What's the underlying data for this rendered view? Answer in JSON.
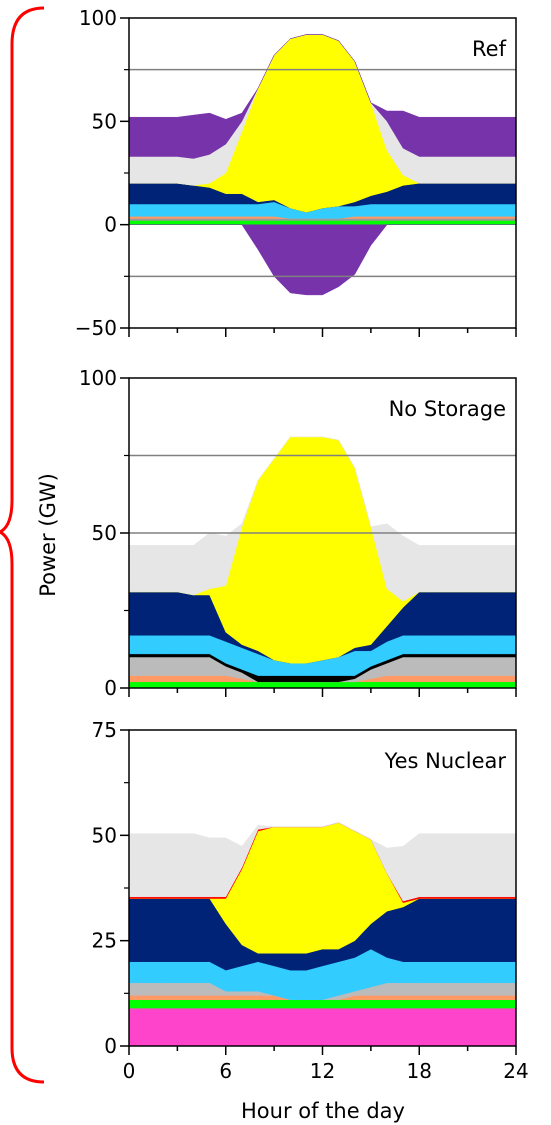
{
  "figure": {
    "ylabel": "Power (GW)",
    "xlabel": "Hour of the day",
    "x_ticks": [
      "0",
      "6",
      "12",
      "18",
      "24"
    ],
    "bracket_color": "#ff0000"
  },
  "chart_data": [
    {
      "type": "area",
      "title": "Ref",
      "xlim": [
        0,
        24
      ],
      "ylim": [
        -50,
        100
      ],
      "y_ticks": [
        -50,
        0,
        50,
        100
      ],
      "y_tick_labels": [
        "−50",
        "0",
        "50",
        "100"
      ],
      "reference_lines": [
        75,
        -25
      ],
      "x": [
        0,
        1,
        2,
        3,
        4,
        5,
        6,
        7,
        8,
        9,
        10,
        11,
        12,
        13,
        14,
        15,
        16,
        17,
        18,
        19,
        20,
        21,
        22,
        23,
        24
      ],
      "series": [
        {
          "color": "#00ff00",
          "values": [
            2,
            2,
            2,
            2,
            2,
            2,
            2,
            2,
            2,
            2,
            2,
            2,
            2,
            2,
            2,
            2,
            2,
            2,
            2,
            2,
            2,
            2,
            2,
            2,
            2
          ]
        },
        {
          "color": "#999999",
          "values": [
            1,
            1,
            1,
            1,
            1,
            1,
            1,
            1,
            1,
            1,
            1,
            1,
            1,
            1,
            1,
            1,
            1,
            1,
            1,
            1,
            1,
            1,
            1,
            1,
            1
          ]
        },
        {
          "color": "#ff9966",
          "values": [
            1,
            1,
            1,
            1,
            1,
            1,
            1,
            1,
            1,
            1,
            0,
            0,
            0,
            0,
            1,
            1,
            1,
            1,
            1,
            1,
            1,
            1,
            1,
            1,
            1
          ]
        },
        {
          "color": "#33ccff",
          "values": [
            6,
            6,
            6,
            6,
            6,
            6,
            6,
            6,
            6,
            7,
            5,
            3,
            5,
            6,
            5,
            6,
            6,
            6,
            6,
            6,
            6,
            6,
            6,
            6,
            6
          ]
        },
        {
          "color": "#002277",
          "values": [
            10,
            10,
            10,
            10,
            9,
            8,
            5,
            5,
            1,
            1,
            0,
            0,
            0,
            0,
            2,
            4,
            6,
            9,
            10,
            10,
            10,
            10,
            10,
            10,
            10
          ]
        },
        {
          "color": "#ffff00",
          "values": [
            0,
            0,
            0,
            0,
            0,
            2,
            10,
            30,
            55,
            70,
            82,
            86,
            84,
            80,
            68,
            45,
            20,
            5,
            0,
            0,
            0,
            0,
            0,
            0,
            0
          ]
        },
        {
          "color": "#e6e6e6",
          "values": [
            13,
            13,
            13,
            13,
            13,
            14,
            14,
            5,
            0,
            0,
            0,
            0,
            0,
            0,
            0,
            0,
            14,
            13,
            13,
            13,
            13,
            13,
            13,
            13,
            13
          ]
        },
        {
          "color": "#7733aa",
          "values": [
            19,
            19,
            19,
            19,
            21,
            20,
            12,
            4,
            0,
            0,
            0,
            0,
            0,
            0,
            0,
            0,
            5,
            18,
            19,
            19,
            19,
            19,
            19,
            19,
            19
          ]
        }
      ],
      "negative_series": [
        {
          "color": "#7733aa",
          "values": [
            0,
            0,
            0,
            0,
            0,
            0,
            0,
            0,
            -12,
            -25,
            -33,
            -34,
            -34,
            -30,
            -24,
            -10,
            0,
            0,
            0,
            0,
            0,
            0,
            0,
            0,
            0
          ]
        }
      ]
    },
    {
      "type": "area",
      "title": "No Storage",
      "xlim": [
        0,
        24
      ],
      "ylim": [
        0,
        100
      ],
      "y_ticks": [
        0,
        50,
        100
      ],
      "y_tick_labels": [
        "0",
        "50",
        "100"
      ],
      "reference_lines": [
        75,
        50
      ],
      "x": [
        0,
        1,
        2,
        3,
        4,
        5,
        6,
        7,
        8,
        9,
        10,
        11,
        12,
        13,
        14,
        15,
        16,
        17,
        18,
        19,
        20,
        21,
        22,
        23,
        24
      ],
      "series": [
        {
          "color": "#00ff00",
          "values": [
            2,
            2,
            2,
            2,
            2,
            2,
            2,
            2,
            2,
            2,
            2,
            2,
            2,
            2,
            2,
            2,
            2,
            2,
            2,
            2,
            2,
            2,
            2,
            2,
            2
          ]
        },
        {
          "color": "#ff9966",
          "values": [
            2,
            2,
            2,
            2,
            2,
            2,
            2,
            1,
            0,
            0,
            0,
            0,
            0,
            0,
            0,
            1,
            2,
            2,
            2,
            2,
            2,
            2,
            2,
            2,
            2
          ]
        },
        {
          "color": "#bbbbbb",
          "values": [
            6,
            6,
            6,
            6,
            6,
            6,
            3,
            2,
            0,
            0,
            0,
            0,
            0,
            0,
            1,
            3,
            4,
            6,
            6,
            6,
            6,
            6,
            6,
            6,
            6
          ]
        },
        {
          "color": "#000000",
          "values": [
            1,
            1,
            1,
            1,
            1,
            1,
            1,
            1,
            2,
            2,
            2,
            2,
            2,
            2,
            1,
            1,
            1,
            1,
            1,
            1,
            1,
            1,
            1,
            1,
            1
          ]
        },
        {
          "color": "#33ccff",
          "values": [
            6,
            6,
            6,
            6,
            6,
            6,
            7,
            7,
            7,
            5,
            4,
            4,
            5,
            6,
            8,
            5,
            6,
            6,
            6,
            6,
            6,
            6,
            6,
            6,
            6
          ]
        },
        {
          "color": "#002277",
          "values": [
            14,
            14,
            14,
            14,
            13,
            13,
            3,
            1,
            1,
            0,
            0,
            0,
            0,
            0,
            1,
            2,
            5,
            9,
            14,
            14,
            14,
            14,
            14,
            14,
            14
          ]
        },
        {
          "color": "#ffff00",
          "values": [
            0,
            0,
            0,
            0,
            0,
            2,
            15,
            38,
            55,
            65,
            73,
            73,
            72,
            70,
            58,
            38,
            12,
            2,
            0,
            0,
            0,
            0,
            0,
            0,
            0
          ]
        },
        {
          "color": "#e6e6e6",
          "values": [
            15,
            15,
            15,
            15,
            16,
            18,
            16,
            1,
            0,
            0,
            0,
            0,
            0,
            0,
            0,
            0,
            21,
            21,
            15,
            15,
            15,
            15,
            15,
            15,
            15
          ]
        }
      ]
    },
    {
      "type": "area",
      "title": "Yes Nuclear",
      "xlim": [
        0,
        24
      ],
      "ylim": [
        0,
        75
      ],
      "y_ticks": [
        0,
        25,
        50,
        75
      ],
      "y_tick_labels": [
        "0",
        "25",
        "50",
        "75"
      ],
      "reference_lines": [],
      "x": [
        0,
        1,
        2,
        3,
        4,
        5,
        6,
        7,
        8,
        9,
        10,
        11,
        12,
        13,
        14,
        15,
        16,
        17,
        18,
        19,
        20,
        21,
        22,
        23,
        24
      ],
      "series": [
        {
          "color": "#ff44cc",
          "values": [
            9,
            9,
            9,
            9,
            9,
            9,
            9,
            9,
            9,
            9,
            9,
            9,
            9,
            9,
            9,
            9,
            9,
            9,
            9,
            9,
            9,
            9,
            9,
            9,
            9
          ]
        },
        {
          "color": "#00ff00",
          "values": [
            2,
            2,
            2,
            2,
            2,
            2,
            2,
            2,
            2,
            2,
            2,
            2,
            2,
            2,
            2,
            2,
            2,
            2,
            2,
            2,
            2,
            2,
            2,
            2,
            2
          ]
        },
        {
          "color": "#ff9966",
          "values": [
            1,
            1,
            1,
            1,
            1,
            1,
            1,
            1,
            1,
            1,
            0,
            0,
            0,
            0,
            1,
            1,
            1,
            1,
            1,
            1,
            1,
            1,
            1,
            1,
            1
          ]
        },
        {
          "color": "#bbbbbb",
          "values": [
            3,
            3,
            3,
            3,
            3,
            3,
            1,
            1,
            1,
            0,
            0,
            0,
            0,
            1,
            1,
            2,
            3,
            3,
            3,
            3,
            3,
            3,
            3,
            3,
            3
          ]
        },
        {
          "color": "#33ccff",
          "values": [
            5,
            5,
            5,
            5,
            5,
            5,
            5,
            6,
            7,
            7,
            7,
            7,
            8,
            8,
            8,
            9,
            6,
            5,
            5,
            5,
            5,
            5,
            5,
            5,
            5
          ]
        },
        {
          "color": "#002277",
          "values": [
            15,
            15,
            15,
            15,
            15,
            15,
            11,
            5,
            2,
            3,
            4,
            4,
            4,
            3,
            4,
            6,
            11,
            13,
            15,
            15,
            15,
            15,
            15,
            15,
            15
          ]
        },
        {
          "color": "#ffff00",
          "values": [
            0,
            0,
            0,
            0,
            0,
            0,
            6,
            18,
            29,
            30,
            30,
            30,
            29,
            30,
            26,
            20,
            9,
            1,
            0,
            0,
            0,
            0,
            0,
            0,
            0
          ]
        },
        {
          "color": "#ff0000",
          "values": [
            0.4,
            0.4,
            0.4,
            0.4,
            0.4,
            0.4,
            0.4,
            0.4,
            0.4,
            0,
            0,
            0,
            0,
            0,
            0,
            0,
            0,
            0.4,
            0.4,
            0.4,
            0.4,
            0.4,
            0.4,
            0.4,
            0.4
          ]
        },
        {
          "color": "#e6e6e6",
          "values": [
            15,
            15,
            15,
            15,
            15,
            14,
            14,
            5,
            1,
            0,
            0,
            0,
            0,
            0,
            0,
            0,
            6,
            13,
            15,
            15,
            15,
            15,
            15,
            15,
            15
          ]
        }
      ]
    }
  ]
}
